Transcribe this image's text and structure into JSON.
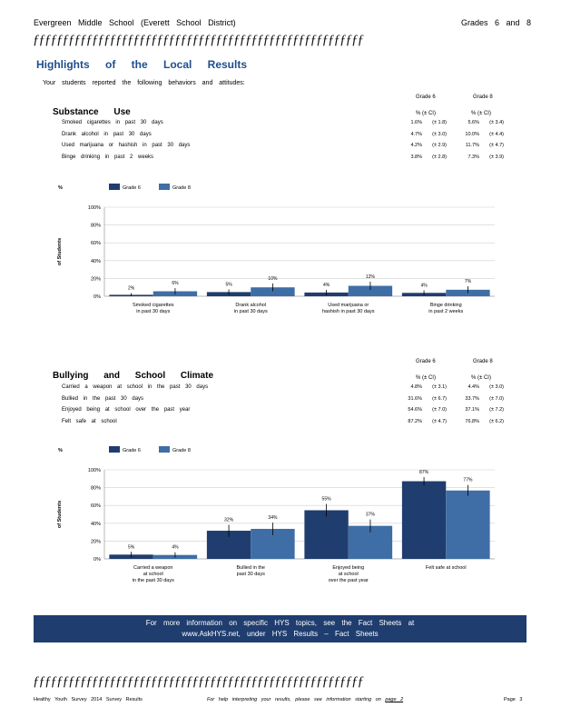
{
  "header": {
    "left": "Evergreen Middle School (Everett School District)",
    "right": "Grades 6 and 8",
    "deco": "ƒƒƒƒƒƒƒƒƒƒƒƒƒƒƒƒƒƒƒƒƒƒƒƒƒƒƒƒƒƒƒƒƒƒƒƒƒƒƒƒƒƒƒƒƒƒƒƒƒƒƒƒƒƒƒƒ"
  },
  "highlights": {
    "title": "Highlights of the Local Results",
    "intro": "Your students reported the following behaviors and attitudes:"
  },
  "substance": {
    "title": "Substance Use",
    "grade6_label": "Grade 6",
    "grade8_label": "Grade 8",
    "ci_label": "% (± CI)",
    "rows": [
      {
        "label": "Smoked cigarettes in past 30 days",
        "g6": "1.6%",
        "g6ci": "(± 1.8)",
        "g8": "5.6%",
        "g8ci": "(± 3.4)"
      },
      {
        "label": "Drank alcohol in past 30 days",
        "g6": "4.7%",
        "g6ci": "(± 3.0)",
        "g8": "10.0%",
        "g8ci": "(± 4.4)"
      },
      {
        "label": "Used marijuana or hashish in past 30 days",
        "g6": "4.2%",
        "g6ci": "(± 2.9)",
        "g8": "11.7%",
        "g8ci": "(± 4.7)"
      },
      {
        "label": "Binge drinking in past 2 weeks",
        "g6": "3.8%",
        "g6ci": "(± 2.8)",
        "g8": "7.3%",
        "g8ci": "(± 3.9)"
      }
    ]
  },
  "bullying": {
    "title": "Bullying and School Climate",
    "grade6_label": "Grade 6",
    "grade8_label": "Grade 8",
    "ci_label": "% (± CI)",
    "rows": [
      {
        "label": "Carried a weapon at school in the past 30 days",
        "g6": "4.8%",
        "g6ci": "(± 3.1)",
        "g8": "4.4%",
        "g8ci": "(± 3.0)"
      },
      {
        "label": "Bullied in the past 30 days",
        "g6": "31.6%",
        "g6ci": "(± 6.7)",
        "g8": "33.7%",
        "g8ci": "(± 7.0)"
      },
      {
        "label": "Enjoyed being at school over the past year",
        "g6": "54.6%",
        "g6ci": "(± 7.0)",
        "g8": "37.1%",
        "g8ci": "(± 7.2)"
      },
      {
        "label": "Felt safe at school",
        "g6": "87.2%",
        "g6ci": "(± 4.7)",
        "g8": "76.8%",
        "g8ci": "(± 6.2)"
      }
    ]
  },
  "chart_data": [
    {
      "type": "bar",
      "categories": [
        "Smoked cigarettes in past 30 days",
        "Drank alcohol in past 30 days",
        "Used marijuana or hashish in past 30 days",
        "Binge drinking in past 2 weeks"
      ],
      "category_lines": [
        [
          "Smoked cigarettes",
          "in past 30 days"
        ],
        [
          "Drank alcohol",
          "in past 30 days"
        ],
        [
          "Used marijuana or",
          "hashish in past 30 days"
        ],
        [
          "Binge drinking",
          "in past 2 weeks"
        ]
      ],
      "series": [
        {
          "name": "Grade 6",
          "values": [
            1.6,
            4.7,
            4.2,
            3.8
          ],
          "ci": [
            1.8,
            3.0,
            2.9,
            2.8
          ],
          "labels": [
            "2%",
            "5%",
            "4%",
            "4%"
          ],
          "color": "#1f3d6e"
        },
        {
          "name": "Grade 8",
          "values": [
            5.6,
            10.0,
            11.7,
            7.3
          ],
          "ci": [
            3.4,
            4.4,
            4.7,
            3.9
          ],
          "labels": [
            "6%",
            "10%",
            "12%",
            "7%"
          ],
          "color": "#3f6ea6"
        }
      ],
      "ylabel": "% of Students",
      "ylabel_top": "%",
      "ylabel_rot": "of Students",
      "yticks": [
        "0%",
        "20%",
        "40%",
        "60%",
        "80%",
        "100%"
      ],
      "ylim": [
        0,
        100
      ],
      "grid": true,
      "legend": "top-left"
    },
    {
      "type": "bar",
      "categories": [
        "Carried a weapon at school in the past 30 days",
        "Bullied in the past 30 days",
        "Enjoyed being at school over the past year",
        "Felt safe at school"
      ],
      "category_lines": [
        [
          "Carried a weapon",
          "at school",
          "in the past 30 days"
        ],
        [
          "Bullied in the",
          "past 30 days"
        ],
        [
          "Enjoyed being",
          "at school",
          "over the past year"
        ],
        [
          "Felt safe at school"
        ]
      ],
      "series": [
        {
          "name": "Grade 6",
          "values": [
            4.8,
            31.6,
            54.6,
            87.2
          ],
          "ci": [
            3.1,
            6.7,
            7.0,
            4.7
          ],
          "labels": [
            "5%",
            "32%",
            "55%",
            "87%"
          ],
          "color": "#1f3d6e"
        },
        {
          "name": "Grade 8",
          "values": [
            4.4,
            33.7,
            37.1,
            76.8
          ],
          "ci": [
            3.0,
            7.0,
            7.2,
            6.2
          ],
          "labels": [
            "4%",
            "34%",
            "37%",
            "77%"
          ],
          "color": "#3f6ea6"
        }
      ],
      "ylabel": "% of Students",
      "ylabel_top": "%",
      "ylabel_rot": "of Students",
      "yticks": [
        "0%",
        "20%",
        "40%",
        "60%",
        "80%",
        "100%"
      ],
      "ylim": [
        0,
        100
      ],
      "grid": true,
      "legend": "top-left"
    }
  ],
  "info_box": {
    "line1": "For more information on specific HYS topics, see the Fact Sheets at",
    "line2": "www.AskHYS.net, under HYS Results – Fact Sheets"
  },
  "footer": {
    "left": "Healthy Youth Survey 2014 Survey Results",
    "middle": "For help interpreting your results, please see information starting on",
    "link": "page 2",
    "page": "Page 3"
  }
}
